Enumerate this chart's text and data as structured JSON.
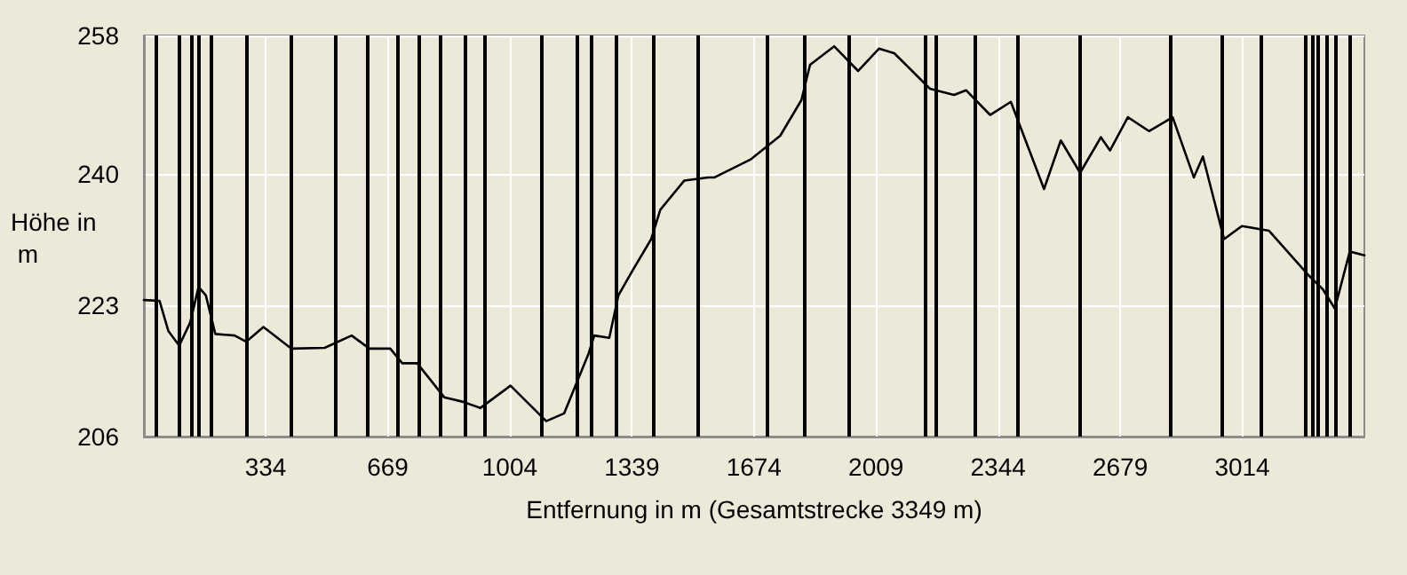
{
  "chart_data": {
    "type": "line",
    "xlabel": "Entfernung in m (Gesamtstrecke 3349 m)",
    "ylabel": "Höhe in m",
    "xlim": [
      0,
      3349
    ],
    "xticks": [
      334,
      669,
      1004,
      1339,
      1674,
      2009,
      2344,
      2679,
      3014
    ],
    "ylim": [
      206,
      258
    ],
    "yticks": [
      206,
      223,
      240,
      258
    ],
    "grid": true,
    "marker": "none",
    "line_style": "solid",
    "series": [
      {
        "color": "#000000",
        "x": [
          0,
          43,
          67,
          97,
          127,
          150,
          170,
          196,
          249,
          281,
          328,
          405,
          496,
          570,
          619,
          676,
          709,
          750,
          824,
          876,
          923,
          1006,
          1104,
          1153,
          1219,
          1236,
          1277,
          1302,
          1343,
          1392,
          1417,
          1483,
          1548,
          1566,
          1664,
          1746,
          1804,
          1828,
          1894,
          1960,
          2017,
          2059,
          2157,
          2223,
          2256,
          2322,
          2379,
          2470,
          2516,
          2569,
          2626,
          2651,
          2700,
          2758,
          2823,
          2881,
          2906,
          2964,
          3013,
          3087,
          3194,
          3235,
          3268,
          3309,
          3349
        ],
        "values": [
          223.7,
          223.6,
          219.7,
          217.8,
          220.8,
          225.4,
          224.3,
          219.3,
          219.1,
          218.3,
          220.2,
          217.4,
          217.5,
          219.1,
          217.4,
          217.4,
          215.5,
          215.5,
          211.1,
          210.5,
          209.7,
          212.6,
          208.0,
          209.0,
          216.6,
          219.1,
          218.8,
          224.3,
          227.7,
          231.6,
          235.4,
          239.2,
          239.6,
          239.6,
          241.9,
          245.0,
          249.6,
          254.2,
          256.6,
          253.4,
          256.3,
          255.7,
          251.1,
          250.3,
          250.9,
          247.7,
          249.4,
          238.1,
          244.4,
          240.2,
          244.8,
          243.1,
          247.4,
          245.6,
          247.4,
          239.6,
          242.3,
          231.6,
          233.3,
          232.7,
          227.0,
          225.1,
          222.6,
          230.0,
          229.5
        ]
      }
    ],
    "ref_lines": [
      {
        "axis": "x",
        "value": 33,
        "color": "#000000"
      },
      {
        "axis": "x",
        "value": 97,
        "color": "#000000"
      },
      {
        "axis": "x",
        "value": 132,
        "color": "#000000"
      },
      {
        "axis": "x",
        "value": 152,
        "color": "#000000"
      },
      {
        "axis": "x",
        "value": 186,
        "color": "#000000"
      },
      {
        "axis": "x",
        "value": 280,
        "color": "#000000"
      },
      {
        "axis": "x",
        "value": 403,
        "color": "#000000"
      },
      {
        "axis": "x",
        "value": 527,
        "color": "#000000"
      },
      {
        "axis": "x",
        "value": 614,
        "color": "#000000"
      },
      {
        "axis": "x",
        "value": 694,
        "color": "#000000"
      },
      {
        "axis": "x",
        "value": 754,
        "color": "#000000"
      },
      {
        "axis": "x",
        "value": 813,
        "color": "#000000"
      },
      {
        "axis": "x",
        "value": 882,
        "color": "#000000"
      },
      {
        "axis": "x",
        "value": 936,
        "color": "#000000"
      },
      {
        "axis": "x",
        "value": 1089,
        "color": "#000000"
      },
      {
        "axis": "x",
        "value": 1188,
        "color": "#000000"
      },
      {
        "axis": "x",
        "value": 1227,
        "color": "#000000"
      },
      {
        "axis": "x",
        "value": 1296,
        "color": "#000000"
      },
      {
        "axis": "x",
        "value": 1400,
        "color": "#000000"
      },
      {
        "axis": "x",
        "value": 1518,
        "color": "#000000"
      },
      {
        "axis": "x",
        "value": 1711,
        "color": "#000000"
      },
      {
        "axis": "x",
        "value": 1810,
        "color": "#000000"
      },
      {
        "axis": "x",
        "value": 1934,
        "color": "#000000"
      },
      {
        "axis": "x",
        "value": 2146,
        "color": "#000000"
      },
      {
        "axis": "x",
        "value": 2175,
        "color": "#000000"
      },
      {
        "axis": "x",
        "value": 2279,
        "color": "#000000"
      },
      {
        "axis": "x",
        "value": 2397,
        "color": "#000000"
      },
      {
        "axis": "x",
        "value": 2570,
        "color": "#000000"
      },
      {
        "axis": "x",
        "value": 2817,
        "color": "#000000"
      },
      {
        "axis": "x",
        "value": 2960,
        "color": "#000000"
      },
      {
        "axis": "x",
        "value": 3064,
        "color": "#000000"
      },
      {
        "axis": "x",
        "value": 3187,
        "color": "#000000"
      },
      {
        "axis": "x",
        "value": 3207,
        "color": "#000000"
      },
      {
        "axis": "x",
        "value": 3222,
        "color": "#000000"
      },
      {
        "axis": "x",
        "value": 3246,
        "color": "#000000"
      },
      {
        "axis": "x",
        "value": 3271,
        "color": "#000000"
      },
      {
        "axis": "x",
        "value": 3310,
        "color": "#000000"
      }
    ]
  }
}
